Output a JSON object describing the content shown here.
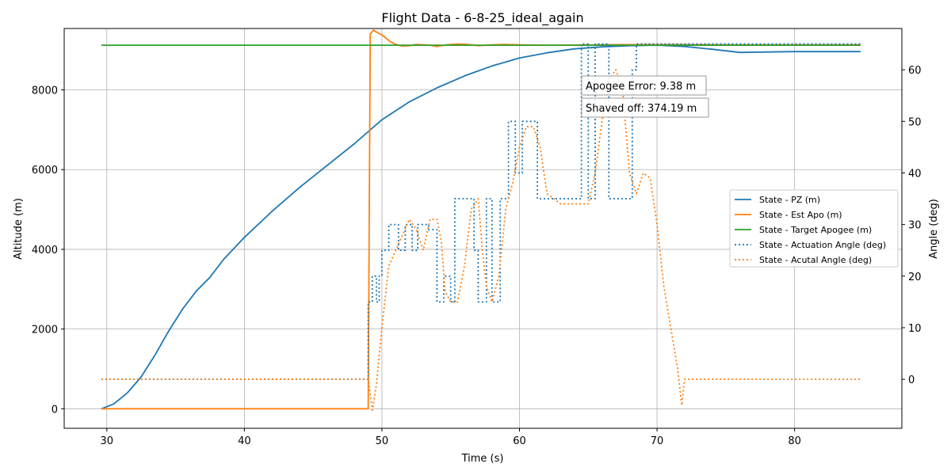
{
  "chart_data": {
    "type": "line",
    "title": "Flight Data - 6-8-25_ideal_again",
    "xlabel": "Time (s)",
    "ylabel": "Altitude (m)",
    "ylabel_right": "Angle (deg)",
    "xlim": [
      26.9,
      87.8
    ],
    "ylim": [
      -490,
      9540
    ],
    "ylim_right": [
      -9.5,
      68.0
    ],
    "xticks": [
      30,
      40,
      50,
      60,
      70,
      80
    ],
    "yticks": [
      0,
      2000,
      4000,
      6000,
      8000
    ],
    "yticks_right": [
      0,
      10,
      20,
      30,
      40,
      50,
      60
    ],
    "grid": true,
    "legend_placement": "center-right",
    "colors": {
      "blue": "#1f77b4",
      "orange": "#ff7f0e",
      "green": "#2ca02c"
    },
    "annotations": [
      "Apogee Error: 9.38 m",
      "Shaved off: 374.19 m"
    ],
    "series": [
      {
        "name": "State - PZ (m)",
        "axis": "left",
        "style": "solid",
        "color": "#1f77b4",
        "x": [
          29.6,
          30.5,
          31.5,
          32.5,
          33.5,
          34.5,
          35.5,
          36.5,
          37.5,
          38.5,
          40,
          42,
          44,
          46,
          48,
          50,
          52,
          54,
          56,
          58,
          60,
          62,
          64,
          66,
          68,
          70,
          72,
          74,
          76,
          78,
          80,
          82,
          84.8
        ],
        "y": [
          0,
          120,
          400,
          800,
          1350,
          1950,
          2500,
          2950,
          3300,
          3750,
          4300,
          4950,
          5550,
          6100,
          6650,
          7250,
          7700,
          8050,
          8350,
          8600,
          8800,
          8930,
          9030,
          9080,
          9110,
          9120,
          9090,
          9020,
          8940,
          8950,
          8960,
          8960,
          8960
        ]
      },
      {
        "name": "State - Est Apo (m)",
        "axis": "left",
        "style": "solid",
        "color": "#ff7f0e",
        "x": [
          29.6,
          49.0,
          49.15,
          49.4,
          49.7,
          50.0,
          50.3,
          50.6,
          51.0,
          51.5,
          52.0,
          52.5,
          53.0,
          53.5,
          54.0,
          54.5,
          55.0,
          55.5,
          56.0,
          56.5,
          57.0,
          58.0,
          59.0,
          60.0,
          62.0,
          64.0,
          66.0,
          68.0,
          70.0,
          75.0,
          80.0,
          84.8
        ],
        "y": [
          0,
          0,
          9400,
          9500,
          9430,
          9380,
          9300,
          9210,
          9140,
          9100,
          9110,
          9140,
          9130,
          9120,
          9090,
          9120,
          9140,
          9150,
          9145,
          9130,
          9110,
          9130,
          9140,
          9130,
          9120,
          9125,
          9130,
          9135,
          9135,
          9130,
          9130,
          9130
        ]
      },
      {
        "name": "State - Target Apogee (m)",
        "axis": "left",
        "style": "solid",
        "color": "#2ca02c",
        "x": [
          29.6,
          84.8
        ],
        "y": [
          9120,
          9120
        ]
      },
      {
        "name": "State - Actuation Angle (deg)",
        "axis": "right",
        "style": "dotted",
        "color": "#1f77b4",
        "x": [
          29.6,
          49.0,
          49.0,
          49.3,
          49.3,
          49.6,
          49.6,
          49.8,
          49.8,
          50.0,
          50.0,
          50.5,
          50.5,
          51.2,
          51.2,
          51.7,
          51.7,
          52.2,
          52.2,
          52.6,
          52.6,
          53.4,
          53.4,
          54.0,
          54.0,
          54.5,
          54.5,
          55.0,
          55.0,
          55.3,
          55.3,
          56.7,
          56.7,
          57.0,
          57.0,
          57.6,
          57.6,
          58.0,
          58.0,
          58.6,
          58.6,
          59.2,
          59.2,
          59.7,
          59.7,
          60.2,
          60.2,
          61.3,
          61.3,
          62.0,
          62.0,
          64.5,
          64.5,
          65.0,
          65.0,
          65.5,
          65.5,
          66.5,
          66.5,
          67.0,
          67.0,
          68.2,
          68.2,
          68.5,
          68.5,
          84.8
        ],
        "y": [
          0,
          0,
          15,
          15,
          20,
          20,
          15,
          15,
          20,
          20,
          25,
          25,
          30,
          30,
          25,
          25,
          30,
          30,
          25,
          25,
          30,
          30,
          29,
          29,
          15,
          15,
          20,
          20,
          15,
          15,
          35,
          35,
          25,
          25,
          15,
          15,
          35,
          35,
          15,
          15,
          35,
          35,
          50,
          50,
          40,
          40,
          50,
          50,
          35,
          35,
          35,
          35,
          65,
          65,
          35,
          35,
          65,
          65,
          35,
          35,
          35,
          35,
          60,
          60,
          65,
          65
        ]
      },
      {
        "name": "State - Acutal Angle (deg)",
        "axis": "right",
        "style": "dotted",
        "color": "#ff7f0e",
        "x": [
          29.6,
          49.0,
          49.3,
          49.6,
          50.0,
          50.5,
          51.0,
          51.5,
          52.0,
          52.5,
          53.0,
          53.5,
          54.0,
          54.3,
          54.6,
          55.0,
          55.5,
          56.0,
          56.5,
          57.0,
          57.3,
          57.6,
          58.0,
          58.5,
          59.0,
          59.5,
          60.0,
          60.5,
          61.0,
          61.5,
          62.0,
          63.0,
          64.0,
          65.0,
          65.5,
          66.0,
          66.5,
          67.0,
          67.5,
          68.0,
          68.5,
          69.0,
          69.5,
          70.0,
          70.5,
          71.0,
          71.5,
          71.8,
          72.0,
          84.8
        ],
        "y": [
          0,
          0,
          -6,
          -1,
          10,
          22,
          25,
          28,
          31,
          29,
          25,
          31,
          31,
          27,
          17,
          15,
          15,
          22,
          33,
          35,
          25,
          18,
          15,
          20,
          33,
          38,
          45,
          49,
          49,
          45,
          36,
          34,
          34,
          34,
          40,
          50,
          58,
          60,
          56,
          40,
          36,
          40,
          39,
          30,
          18,
          10,
          2,
          -5,
          0,
          0
        ]
      }
    ]
  }
}
